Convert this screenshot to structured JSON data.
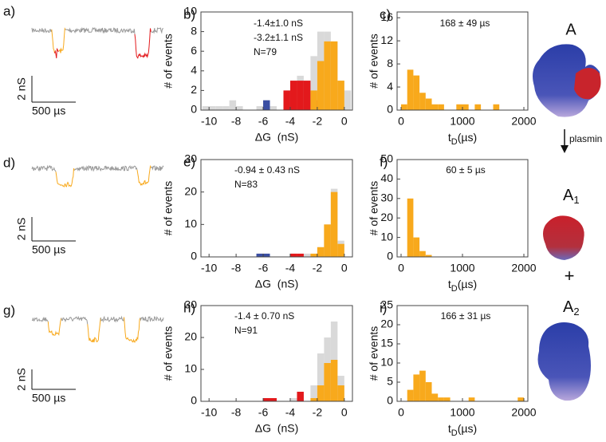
{
  "chart_data": [
    {
      "type": "histogram",
      "label": "b)",
      "x_label": "ΔG  (nS)",
      "y_label": "# of events",
      "annotations": [
        "-1.4±1.0 nS",
        "-3.2±1.1 nS",
        "N=79"
      ],
      "bins": [
        -10.5,
        -10,
        -9.5,
        -9,
        -8.5,
        -8,
        -7.5,
        -7,
        -6.5,
        -6,
        -5.5,
        -5,
        -4.5,
        -4,
        -3.5,
        -3,
        -2.5,
        -2,
        -1.5,
        -1,
        -0.5,
        0,
        0.5
      ],
      "series": [
        {
          "color": "#d9d9d9",
          "values": [
            0.4,
            0.4,
            0.4,
            0.4,
            1,
            0.4,
            0,
            0,
            0.4,
            1,
            0.4,
            0,
            2,
            3,
            3.5,
            3,
            5.5,
            8,
            8,
            7,
            3,
            2
          ]
        },
        {
          "color": "#3b4fa3",
          "values": [
            0,
            0,
            0,
            0,
            0,
            0,
            0,
            0,
            0,
            1,
            0,
            0,
            0,
            0,
            0,
            0,
            0,
            0,
            0,
            0,
            0,
            0
          ]
        },
        {
          "color": "#e3191c",
          "values": [
            0,
            0,
            0,
            0,
            0,
            0,
            0,
            0,
            0,
            0,
            0,
            0,
            2,
            3,
            3,
            3,
            1,
            0,
            0,
            0,
            0,
            0
          ]
        },
        {
          "color": "#f8a91c",
          "values": [
            0,
            0,
            0,
            0,
            0,
            0,
            0,
            0,
            0,
            0,
            0,
            0,
            0,
            0,
            0,
            0,
            2,
            5,
            7,
            7,
            3,
            0
          ]
        }
      ],
      "xlim": [
        -10.6,
        0.6
      ],
      "xticks": [
        -10,
        -8,
        -6,
        -4,
        -2,
        0
      ],
      "ylim": [
        0,
        10
      ],
      "yticks": [
        0,
        2,
        4,
        6,
        8,
        10
      ]
    },
    {
      "type": "histogram",
      "label": "c)",
      "x_label": "t",
      "x_label_subscript": "D",
      "x_label_unit": "(µs)",
      "y_label": "# of events",
      "annotations": [
        "168 ± 49 µs"
      ],
      "bins": [
        0,
        100,
        200,
        300,
        400,
        500,
        600,
        700,
        800,
        900,
        1000,
        1100,
        1200,
        1300,
        1400,
        1500,
        1600,
        1700,
        1800,
        1900,
        2000
      ],
      "series": [
        {
          "color": "#f8a91c",
          "values": [
            1,
            7,
            6,
            3,
            2,
            1,
            1,
            0,
            0,
            1,
            1,
            0,
            1,
            0,
            0,
            1,
            0,
            0,
            0,
            0
          ]
        }
      ],
      "xlim": [
        -65,
        2065
      ],
      "xticks": [
        0,
        1000,
        2000
      ],
      "ylim": [
        0,
        17
      ],
      "yticks": [
        0,
        4,
        8,
        12,
        16
      ]
    },
    {
      "type": "histogram",
      "label": "e)",
      "x_label": "ΔG  (nS)",
      "y_label": "# of events",
      "annotations": [
        "-0.94 ± 0.43 nS",
        "N=83"
      ],
      "bins": [
        -10.5,
        -10,
        -9.5,
        -9,
        -8.5,
        -8,
        -7.5,
        -7,
        -6.5,
        -6,
        -5.5,
        -5,
        -4.5,
        -4,
        -3.5,
        -3,
        -2.5,
        -2,
        -1.5,
        -1,
        -0.5,
        0,
        0.5
      ],
      "series": [
        {
          "color": "#d9d9d9",
          "values": [
            0,
            0,
            0,
            0,
            0,
            0,
            0,
            0,
            1,
            1,
            0,
            0,
            0,
            1,
            0,
            1,
            0,
            3,
            10,
            21,
            5,
            0
          ]
        },
        {
          "color": "#3b4fa3",
          "values": [
            0,
            0,
            0,
            0,
            0,
            0,
            0,
            0,
            1,
            1,
            0,
            0,
            0,
            0,
            0,
            0,
            0,
            0,
            0,
            0,
            0,
            0
          ]
        },
        {
          "color": "#e3191c",
          "values": [
            0,
            0,
            0,
            0,
            0,
            0,
            0,
            0,
            0,
            0,
            0,
            0,
            0,
            1,
            1,
            0,
            0,
            0,
            0,
            0,
            0,
            0
          ]
        },
        {
          "color": "#f8a91c",
          "values": [
            0,
            0,
            0,
            0,
            0,
            0,
            0,
            0,
            0,
            0,
            0,
            0,
            0,
            0,
            0,
            0,
            1,
            3,
            10,
            20,
            4,
            0
          ]
        }
      ],
      "xlim": [
        -10.6,
        0.6
      ],
      "xticks": [
        -10,
        -8,
        -6,
        -4,
        -2,
        0
      ],
      "ylim": [
        0,
        30
      ],
      "yticks": [
        0,
        10,
        20,
        30
      ]
    },
    {
      "type": "histogram",
      "label": "f)",
      "x_label": "t",
      "x_label_subscript": "D",
      "x_label_unit": "(µs)",
      "y_label": "# of events",
      "annotations": [
        "60 ± 5 µs"
      ],
      "bins": [
        0,
        100,
        200,
        300,
        400,
        500,
        600,
        700,
        800,
        900,
        1000,
        1100,
        1200,
        1300,
        1400,
        1500,
        1600,
        1700,
        1800,
        1900,
        2000
      ],
      "series": [
        {
          "color": "#f8a91c",
          "values": [
            0,
            30,
            10,
            3,
            1,
            0,
            0,
            0,
            0,
            0,
            0,
            0,
            0,
            0,
            0,
            0,
            0,
            0,
            0,
            0
          ]
        }
      ],
      "xlim": [
        -65,
        2065
      ],
      "xticks": [
        0,
        1000,
        2000
      ],
      "ylim": [
        0,
        50
      ],
      "yticks": [
        0,
        10,
        20,
        30,
        40,
        50
      ]
    },
    {
      "type": "histogram",
      "label": "h)",
      "x_label": "ΔG  (nS)",
      "y_label": "# of events",
      "annotations": [
        "-1.4 ± 0.70 nS",
        "N=91"
      ],
      "bins": [
        -10.5,
        -10,
        -9.5,
        -9,
        -8.5,
        -8,
        -7.5,
        -7,
        -6.5,
        -6,
        -5.5,
        -5,
        -4.5,
        -4,
        -3.5,
        -3,
        -2.5,
        -2,
        -1.5,
        -1,
        -0.5,
        0,
        0.5
      ],
      "series": [
        {
          "color": "#d9d9d9",
          "values": [
            0,
            0,
            0,
            0,
            0,
            0,
            0,
            0,
            0,
            1,
            1,
            0,
            0,
            1,
            2,
            0,
            5,
            15,
            20,
            25,
            8,
            0
          ]
        },
        {
          "color": "#e3191c",
          "values": [
            0,
            0,
            0,
            0,
            0,
            0,
            0,
            0,
            0,
            1,
            1,
            0,
            0,
            0,
            3,
            0,
            0,
            0,
            0,
            0,
            0,
            0
          ]
        },
        {
          "color": "#f8a91c",
          "values": [
            0,
            0,
            0,
            0,
            0,
            0,
            0,
            0,
            0,
            0,
            0,
            0,
            0,
            0,
            0,
            0,
            1,
            5,
            12,
            13,
            5,
            0
          ]
        }
      ],
      "xlim": [
        -10.6,
        0.6
      ],
      "xticks": [
        -10,
        -8,
        -6,
        -4,
        -2,
        0
      ],
      "ylim": [
        0,
        30
      ],
      "yticks": [
        0,
        10,
        20,
        30
      ]
    },
    {
      "type": "histogram",
      "label": "i)",
      "x_label": "t",
      "x_label_subscript": "D",
      "x_label_unit": "(µs)",
      "y_label": "# of events",
      "annotations": [
        "166 ± 31 µs"
      ],
      "bins": [
        0,
        100,
        200,
        300,
        400,
        500,
        600,
        700,
        800,
        900,
        1000,
        1100,
        1200,
        1300,
        1400,
        1500,
        1600,
        1700,
        1800,
        1900,
        2000
      ],
      "series": [
        {
          "color": "#f8a91c",
          "values": [
            0,
            3,
            7,
            8,
            5,
            2,
            1,
            1,
            0,
            0,
            0,
            1,
            0,
            0,
            0,
            0,
            0,
            0,
            0,
            1
          ]
        }
      ],
      "xlim": [
        -65,
        2065
      ],
      "xticks": [
        0,
        1000,
        2000
      ],
      "ylim": [
        0,
        25
      ],
      "yticks": [
        0,
        5,
        10,
        15,
        20,
        25
      ]
    }
  ],
  "traces": [
    {
      "label": "a)",
      "scale_y": "2 nS",
      "scale_x": "500 µs"
    },
    {
      "label": "d)",
      "scale_y": "2 nS",
      "scale_x": "500 µs"
    },
    {
      "label": "g)",
      "scale_y": "2 nS",
      "scale_x": "500 µs"
    }
  ],
  "scheme": {
    "top": "A",
    "arrow_label": "plasmin",
    "middle": "A",
    "middle_sub": "1",
    "plus": "+",
    "bottom": "A",
    "bottom_sub": "2"
  }
}
